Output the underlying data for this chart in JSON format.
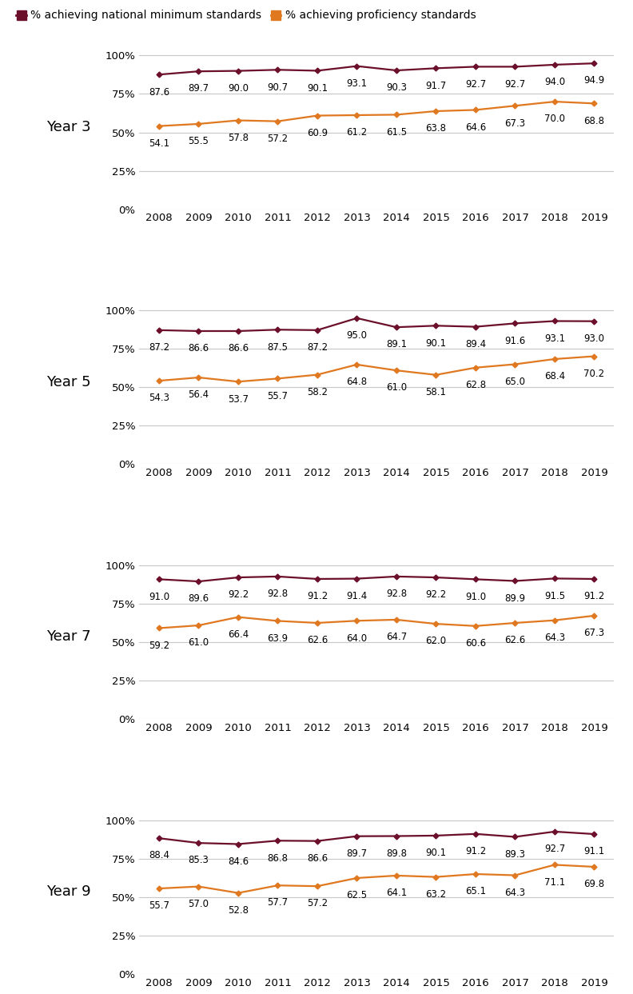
{
  "years": [
    2008,
    2009,
    2010,
    2011,
    2012,
    2013,
    2014,
    2015,
    2016,
    2017,
    2018,
    2019
  ],
  "panels": [
    {
      "label": "Year 3",
      "national_min": [
        87.6,
        89.7,
        90.0,
        90.7,
        90.1,
        93.1,
        90.3,
        91.7,
        92.7,
        92.7,
        94.0,
        94.9
      ],
      "proficiency": [
        54.1,
        55.5,
        57.8,
        57.2,
        60.9,
        61.2,
        61.5,
        63.8,
        64.6,
        67.3,
        70.0,
        68.8
      ]
    },
    {
      "label": "Year 5",
      "national_min": [
        87.2,
        86.6,
        86.6,
        87.5,
        87.2,
        95.0,
        89.1,
        90.1,
        89.4,
        91.6,
        93.1,
        93.0
      ],
      "proficiency": [
        54.3,
        56.4,
        53.7,
        55.7,
        58.2,
        64.8,
        61.0,
        58.1,
        62.8,
        65.0,
        68.4,
        70.2
      ]
    },
    {
      "label": "Year 7",
      "national_min": [
        91.0,
        89.6,
        92.2,
        92.8,
        91.2,
        91.4,
        92.8,
        92.2,
        91.0,
        89.9,
        91.5,
        91.2
      ],
      "proficiency": [
        59.2,
        61.0,
        66.4,
        63.9,
        62.6,
        64.0,
        64.7,
        62.0,
        60.6,
        62.6,
        64.3,
        67.3
      ]
    },
    {
      "label": "Year 9",
      "national_min": [
        88.4,
        85.3,
        84.6,
        86.8,
        86.6,
        89.7,
        89.8,
        90.1,
        91.2,
        89.3,
        92.7,
        91.1
      ],
      "proficiency": [
        55.7,
        57.0,
        52.8,
        57.7,
        57.2,
        62.5,
        64.1,
        63.2,
        65.1,
        64.3,
        71.1,
        69.8
      ]
    }
  ],
  "color_national_min": "#6B0F2B",
  "color_proficiency": "#E07820",
  "legend_label_national_min": "% achieving national minimum standards",
  "legend_label_proficiency": "% achieving proficiency standards",
  "yticks": [
    0,
    25,
    50,
    75,
    100
  ],
  "ytick_labels": [
    "0%",
    "25%",
    "50%",
    "75%",
    "100%"
  ],
  "ylim": [
    0,
    107
  ],
  "background_color": "#ffffff",
  "label_fontsize": 8.5,
  "axis_tick_fontsize": 9.5,
  "legend_fontsize": 10,
  "panel_label_fontsize": 13
}
